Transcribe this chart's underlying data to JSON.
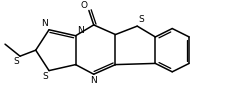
{
  "bg_color": "#ffffff",
  "line_color": "#000000",
  "lw": 1.1,
  "figsize": [
    2.43,
    1.11
  ],
  "dpi": 100,
  "xlim": [
    0,
    10
  ],
  "ylim": [
    0,
    4.2
  ],
  "fs": 6.5
}
